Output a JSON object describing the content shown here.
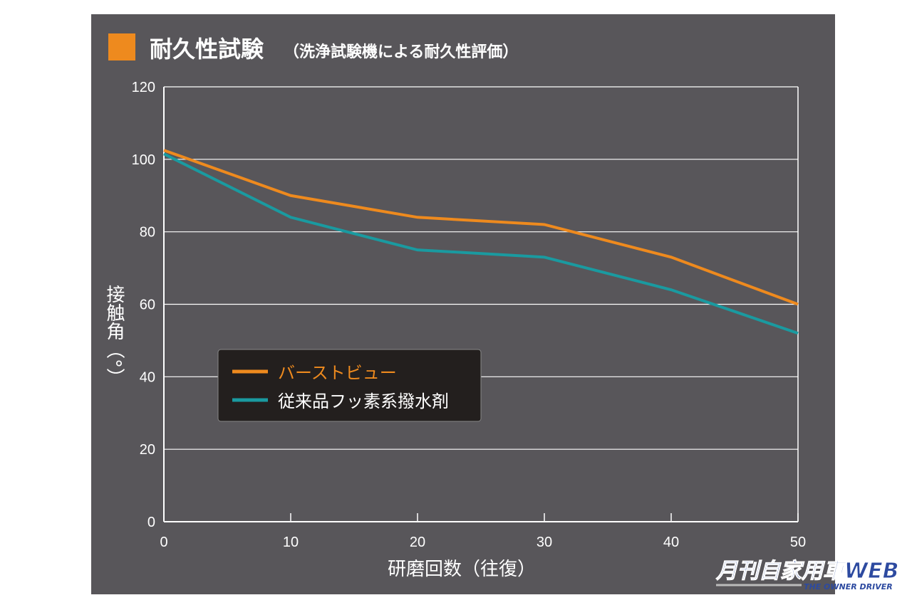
{
  "chart_data": {
    "type": "line",
    "title": "耐久性試験",
    "subtitle": "（洗浄試験機による耐久性評価）",
    "xlabel": "研磨回数（往復）",
    "ylabel": "接触角（°）",
    "x": [
      0,
      10,
      20,
      30,
      40,
      50
    ],
    "xlim": [
      0,
      50
    ],
    "ylim": [
      0,
      120
    ],
    "xticks": [
      "0",
      "10",
      "20",
      "30",
      "40",
      "50"
    ],
    "yticks": [
      "0",
      "20",
      "40",
      "60",
      "80",
      "100",
      "120"
    ],
    "grid": true,
    "legend_position": "center-left",
    "series": [
      {
        "name": "バーストビュー",
        "color": "#ee8a1e",
        "values": [
          102.5,
          90,
          84,
          82,
          73,
          60
        ]
      },
      {
        "name": "従来品フッ素系撥水剤",
        "color": "#1a9aa0",
        "values": [
          101.5,
          84,
          75,
          73,
          64,
          52
        ]
      }
    ],
    "colors": {
      "background": "#58565a",
      "title_square": "#ee8a1e"
    }
  },
  "watermark": {
    "logo_text": "月刊自家用車WEB",
    "logo_subtext": "THE OWNER DRIVER"
  }
}
